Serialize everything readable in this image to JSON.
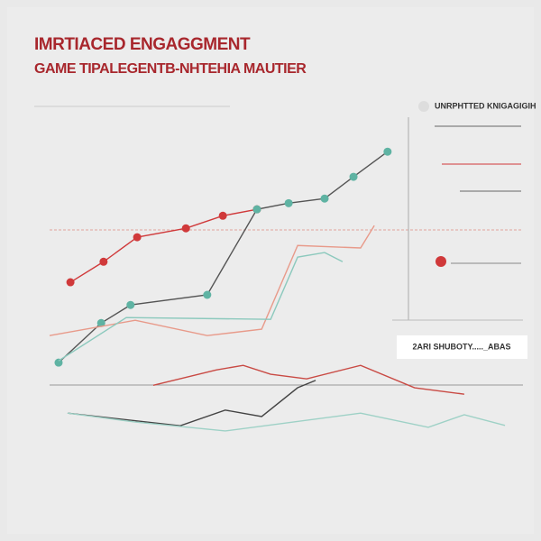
{
  "chart_data": {
    "type": "line",
    "title": "IMRTIACED ENGAGGMENT",
    "subtitle": "GAME TIPALEGENTB-NHTEHIA MAUTIER",
    "annotations": [
      "UNRPHTTED KNIGAGIGIH",
      "2ARI SHUBOTY....._ABAS"
    ],
    "xlim": [
      0,
      100
    ],
    "ylim": [
      0,
      100
    ],
    "series": [
      {
        "color": "#d0393a",
        "markers": true,
        "x": [
          4.4,
          11.4,
          18.5,
          28.8,
          36.6,
          43.8
        ],
        "values": [
          49.1,
          55.8,
          63.8,
          66.7,
          70.8,
          72.9
        ]
      },
      {
        "color": "#555555",
        "markers": true,
        "marker_color": "#5fb3a3",
        "x": [
          1.9,
          10.9,
          17.1,
          33.3,
          43.8,
          50.5,
          58.1,
          64.2,
          71.4
        ],
        "values": [
          22.9,
          35.8,
          41.7,
          45.0,
          72.9,
          74.9,
          76.4,
          83.5,
          91.7
        ]
      },
      {
        "color": "#e89a8a",
        "markers": false,
        "x": [
          0,
          18.1,
          33.3,
          44.8,
          52.4,
          65.7,
          68.6
        ],
        "values": [
          31.7,
          36.7,
          31.7,
          33.8,
          61.1,
          60.3,
          67.6
        ]
      },
      {
        "color": "#8cc9bd",
        "markers": false,
        "x": [
          1.9,
          16.2,
          46.7,
          52.4,
          58.1,
          61.9
        ],
        "values": [
          23.5,
          37.6,
          37.0,
          57.3,
          58.8,
          55.8
        ]
      },
      {
        "color": "#c94a44",
        "markers": false,
        "x": [
          21.9,
          35.2,
          40.9,
          46.7,
          54.3,
          65.7,
          77.1,
          87.6
        ],
        "values": [
          15.5,
          20.5,
          22.0,
          19.1,
          17.6,
          22.0,
          14.7,
          12.6
        ]
      },
      {
        "color": "#444444",
        "markers": false,
        "x": [
          3.8,
          27.6,
          37.1,
          44.8,
          52.4,
          56.2
        ],
        "values": [
          6.4,
          2.3,
          7.4,
          5.3,
          14.7,
          17.1
        ]
      },
      {
        "color": "#9ed1c6",
        "markers": false,
        "x": [
          3.8,
          18.1,
          37.1,
          65.7,
          80,
          87.6,
          96.2
        ],
        "values": [
          6.4,
          3.5,
          0.6,
          6.4,
          1.8,
          5.9,
          2.4
        ]
      }
    ]
  }
}
